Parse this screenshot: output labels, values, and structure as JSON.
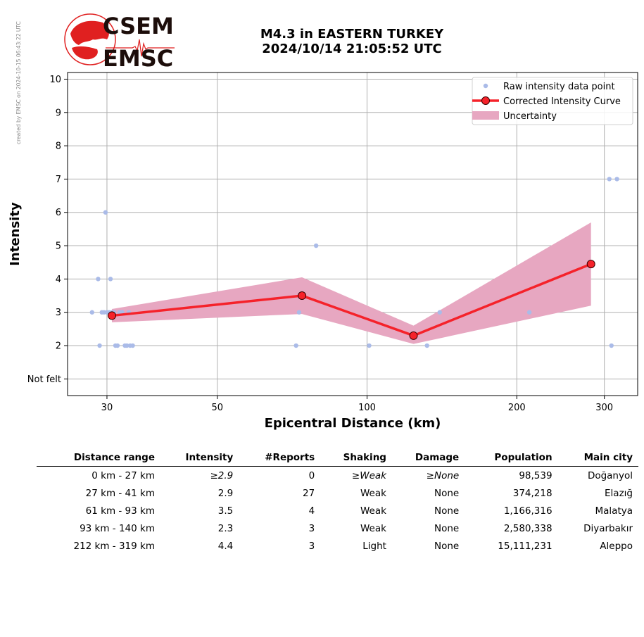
{
  "credit": "created by EMSC on 2024-10-15 06:43:22 UTC",
  "logo": {
    "line1": "CSEM",
    "line2": "EMSC"
  },
  "title": {
    "line1": "M4.3 in EASTERN TURKEY",
    "line2": "2024/10/14 21:05:52 UTC"
  },
  "colors": {
    "raw": "#aabbe8",
    "curve": "#f5222a",
    "band": "#e7a7c1",
    "logo_red": "#e02020"
  },
  "chart_data": {
    "type": "scatter",
    "xlabel": "Epicentral Distance (km)",
    "ylabel": "Intensity",
    "x_scale": "log",
    "xlim": [
      25,
      350
    ],
    "ylim": [
      0.5,
      10.2
    ],
    "x_ticks": [
      30,
      50,
      100,
      200,
      300
    ],
    "y_ticks": [
      1,
      2,
      3,
      4,
      5,
      6,
      7,
      8,
      9,
      10
    ],
    "y_tick_labels": [
      "Not felt",
      "2",
      "3",
      "4",
      "5",
      "6",
      "7",
      "8",
      "9",
      "10"
    ],
    "grid": true,
    "legend_position": "top-right",
    "legend": [
      "Raw intensity data point",
      "Corrected Intensity Curve",
      "Uncertainty"
    ],
    "raw_points": [
      [
        28,
        3
      ],
      [
        28.8,
        4
      ],
      [
        29,
        2
      ],
      [
        29.3,
        3
      ],
      [
        29.6,
        3
      ],
      [
        29.8,
        6
      ],
      [
        30,
        3
      ],
      [
        30.3,
        3
      ],
      [
        30.5,
        4
      ],
      [
        30.7,
        3
      ],
      [
        31,
        3
      ],
      [
        31.2,
        2
      ],
      [
        31.5,
        2
      ],
      [
        31.8,
        3
      ],
      [
        32.2,
        3
      ],
      [
        32.6,
        2
      ],
      [
        32.9,
        2
      ],
      [
        33.2,
        3
      ],
      [
        33.4,
        2
      ],
      [
        33.8,
        2
      ],
      [
        72,
        2
      ],
      [
        73,
        3
      ],
      [
        79,
        5
      ],
      [
        101,
        2
      ],
      [
        132,
        2
      ],
      [
        140,
        3
      ],
      [
        212,
        3
      ],
      [
        307,
        7
      ],
      [
        310,
        2
      ],
      [
        318,
        7
      ]
    ],
    "curve": {
      "x": [
        30.7,
        74,
        124,
        282
      ],
      "y": [
        2.9,
        3.5,
        2.3,
        4.45
      ]
    },
    "uncertainty": {
      "x": [
        30.7,
        74,
        124,
        282
      ],
      "upper": [
        3.1,
        4.05,
        2.6,
        5.7
      ],
      "lower": [
        2.7,
        2.95,
        2.05,
        3.2
      ]
    }
  },
  "table": {
    "headers": [
      "Distance range",
      "Intensity",
      "#Reports",
      "Shaking",
      "Damage",
      "Population",
      "Main city"
    ],
    "rows": [
      [
        "0 km -   27 km",
        "≥2.9",
        "0",
        "≥Weak",
        "≥None",
        "98,539",
        "Doğanyol"
      ],
      [
        "27 km -   41 km",
        "2.9",
        "27",
        "Weak",
        "None",
        "374,218",
        "Elazığ"
      ],
      [
        "61 km -   93 km",
        "3.5",
        "4",
        "Weak",
        "None",
        "1,166,316",
        "Malatya"
      ],
      [
        "93 km -  140 km",
        "2.3",
        "3",
        "Weak",
        "None",
        "2,580,338",
        "Diyarbakır"
      ],
      [
        "212 km -  319 km",
        "4.4",
        "3",
        "Light",
        "None",
        "15,111,231",
        "Aleppo"
      ]
    ]
  }
}
